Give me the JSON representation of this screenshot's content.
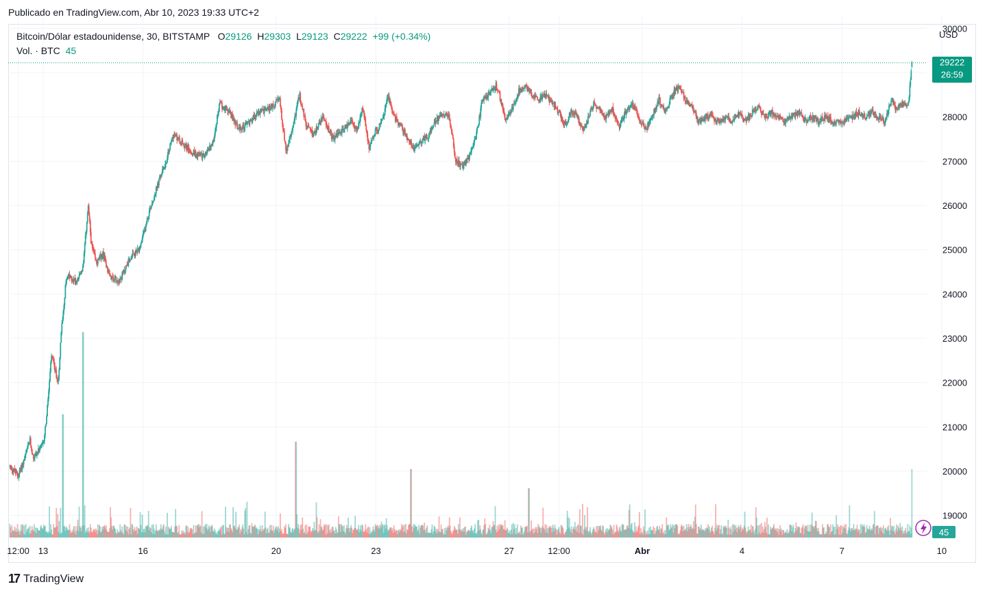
{
  "header": {
    "published": "Publicado en TradingView.com, Abr 10, 2023 19:33 UTC+2"
  },
  "legend": {
    "symbol": "Bitcoin/Dólar estadounidense, 30, BITSTAMP",
    "o_label": "O",
    "o_value": "29126",
    "h_label": "H",
    "h_value": "29303",
    "l_label": "L",
    "l_value": "29123",
    "c_label": "C",
    "c_value": "29222",
    "change": "+99 (+0.34%)",
    "vol_label": "Vol. · BTC",
    "vol_value": "45"
  },
  "axis": {
    "currency": "USD",
    "price_badge": "29222",
    "countdown": "26:59",
    "vol_badge": "45"
  },
  "footer": {
    "brand": "TradingView",
    "logo_glyph": "17"
  },
  "colors": {
    "up": "#26a69a",
    "down": "#ef5350",
    "badge": "#089981",
    "grid": "#f0f3fa",
    "accent": "#9c27b0"
  },
  "chart_data": {
    "type": "candlestick",
    "symbol": "BTCUSD",
    "exchange": "BITSTAMP",
    "interval": "30",
    "last": {
      "open": 29126,
      "high": 29303,
      "low": 29123,
      "close": 29222,
      "volume": 45
    },
    "y_ticks": [
      19000,
      20000,
      21000,
      22000,
      23000,
      24000,
      25000,
      26000,
      27000,
      28000,
      29000,
      30000
    ],
    "y_tick_labels": [
      "19000",
      "20000",
      "21000",
      "22000",
      "23000",
      "24000",
      "25000",
      "26000",
      "27000",
      "28000",
      "29000",
      "30000"
    ],
    "ylim": [
      18500,
      30300
    ],
    "x_ticks": [
      {
        "label": "12:00",
        "day": 0.25
      },
      {
        "label": "13",
        "day": 1
      },
      {
        "label": "16",
        "day": 4
      },
      {
        "label": "20",
        "day": 8
      },
      {
        "label": "23",
        "day": 11
      },
      {
        "label": "27",
        "day": 15
      },
      {
        "label": "12:00",
        "day": 16.5
      },
      {
        "label": "Abr",
        "day": 19,
        "bold": true
      },
      {
        "label": "4",
        "day": 22
      },
      {
        "label": "7",
        "day": 25
      },
      {
        "label": "10",
        "day": 28
      }
    ],
    "close_path": [
      [
        0.0,
        20100
      ],
      [
        0.25,
        19900
      ],
      [
        0.45,
        20300
      ],
      [
        0.6,
        20700
      ],
      [
        0.7,
        20300
      ],
      [
        1.0,
        20600
      ],
      [
        1.1,
        21200
      ],
      [
        1.25,
        22600
      ],
      [
        1.45,
        22000
      ],
      [
        1.55,
        23200
      ],
      [
        1.7,
        24400
      ],
      [
        2.0,
        24300
      ],
      [
        2.2,
        24600
      ],
      [
        2.35,
        26000
      ],
      [
        2.45,
        25100
      ],
      [
        2.6,
        24700
      ],
      [
        2.8,
        24900
      ],
      [
        3.0,
        24400
      ],
      [
        3.3,
        24300
      ],
      [
        3.6,
        24800
      ],
      [
        3.9,
        25000
      ],
      [
        4.2,
        25900
      ],
      [
        4.5,
        26600
      ],
      [
        4.7,
        27000
      ],
      [
        4.9,
        27600
      ],
      [
        5.2,
        27400
      ],
      [
        5.5,
        27200
      ],
      [
        5.8,
        27100
      ],
      [
        6.1,
        27400
      ],
      [
        6.3,
        28300
      ],
      [
        6.6,
        28100
      ],
      [
        6.9,
        27700
      ],
      [
        7.2,
        27900
      ],
      [
        7.5,
        28100
      ],
      [
        7.8,
        28200
      ],
      [
        8.1,
        28400
      ],
      [
        8.3,
        27200
      ],
      [
        8.45,
        27600
      ],
      [
        8.7,
        28500
      ],
      [
        8.9,
        27800
      ],
      [
        9.1,
        27600
      ],
      [
        9.4,
        28000
      ],
      [
        9.7,
        27500
      ],
      [
        10.0,
        27700
      ],
      [
        10.25,
        27900
      ],
      [
        10.45,
        27700
      ],
      [
        10.6,
        28200
      ],
      [
        10.8,
        27300
      ],
      [
        11.0,
        27700
      ],
      [
        11.2,
        27900
      ],
      [
        11.35,
        28500
      ],
      [
        11.55,
        28000
      ],
      [
        11.75,
        27800
      ],
      [
        11.95,
        27500
      ],
      [
        12.15,
        27300
      ],
      [
        12.4,
        27500
      ],
      [
        12.6,
        27600
      ],
      [
        12.8,
        27900
      ],
      [
        13.0,
        28100
      ],
      [
        13.2,
        28000
      ],
      [
        13.4,
        27000
      ],
      [
        13.6,
        26900
      ],
      [
        13.8,
        27100
      ],
      [
        14.0,
        27500
      ],
      [
        14.2,
        28400
      ],
      [
        14.4,
        28500
      ],
      [
        14.6,
        28700
      ],
      [
        14.75,
        28400
      ],
      [
        14.9,
        27900
      ],
      [
        15.1,
        28200
      ],
      [
        15.3,
        28600
      ],
      [
        15.5,
        28700
      ],
      [
        15.7,
        28500
      ],
      [
        15.9,
        28400
      ],
      [
        16.1,
        28500
      ],
      [
        16.3,
        28300
      ],
      [
        16.5,
        28100
      ],
      [
        16.7,
        27800
      ],
      [
        16.85,
        28100
      ],
      [
        17.0,
        28100
      ],
      [
        17.2,
        27700
      ],
      [
        17.35,
        27900
      ],
      [
        17.55,
        28300
      ],
      [
        17.7,
        28200
      ],
      [
        17.9,
        28000
      ],
      [
        18.1,
        28200
      ],
      [
        18.3,
        27800
      ],
      [
        18.5,
        28100
      ],
      [
        18.7,
        28300
      ],
      [
        18.9,
        28000
      ],
      [
        19.1,
        27700
      ],
      [
        19.3,
        28000
      ],
      [
        19.5,
        28400
      ],
      [
        19.7,
        28100
      ],
      [
        19.9,
        28500
      ],
      [
        20.1,
        28700
      ],
      [
        20.3,
        28400
      ],
      [
        20.5,
        28200
      ],
      [
        20.7,
        27900
      ],
      [
        20.9,
        28000
      ],
      [
        21.1,
        28000
      ],
      [
        21.3,
        27900
      ],
      [
        21.5,
        28000
      ],
      [
        21.7,
        27900
      ],
      [
        21.9,
        28100
      ],
      [
        22.1,
        27900
      ],
      [
        22.3,
        28100
      ],
      [
        22.5,
        28200
      ],
      [
        22.7,
        28000
      ],
      [
        22.9,
        28100
      ],
      [
        23.1,
        28000
      ],
      [
        23.3,
        27900
      ],
      [
        23.5,
        28000
      ],
      [
        23.7,
        28100
      ],
      [
        23.9,
        27900
      ],
      [
        24.1,
        28000
      ],
      [
        24.3,
        27900
      ],
      [
        24.5,
        28000
      ],
      [
        24.7,
        27900
      ],
      [
        24.9,
        27900
      ],
      [
        25.1,
        27900
      ],
      [
        25.3,
        28000
      ],
      [
        25.5,
        28100
      ],
      [
        25.7,
        28000
      ],
      [
        25.9,
        28100
      ],
      [
        26.1,
        28000
      ],
      [
        26.3,
        27900
      ],
      [
        26.5,
        28400
      ],
      [
        26.6,
        28200
      ],
      [
        26.8,
        28300
      ],
      [
        27.0,
        28300
      ],
      [
        27.1,
        29222
      ]
    ],
    "volume_spikes": [
      {
        "day": 1.6,
        "value": 0.45
      },
      {
        "day": 2.2,
        "value": 0.75
      },
      {
        "day": 8.6,
        "value": 0.35
      },
      {
        "day": 12.05,
        "value": 0.25
      },
      {
        "day": 15.6,
        "value": 0.18
      },
      {
        "day": 27.12,
        "value": 0.25
      }
    ],
    "last_volume": 45
  }
}
